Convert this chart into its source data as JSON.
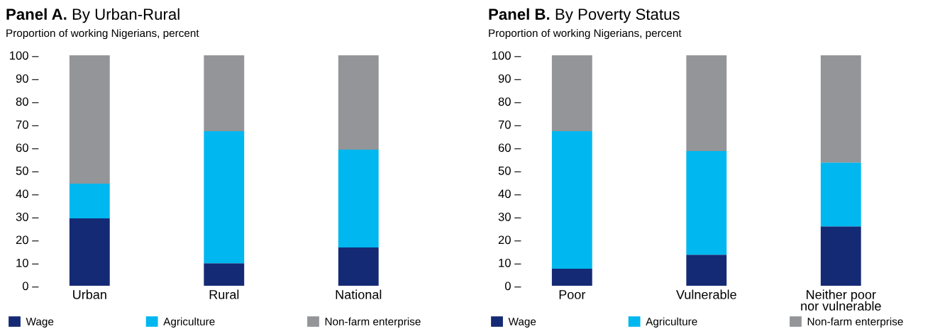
{
  "chart_data": [
    {
      "type": "bar",
      "stacked": true,
      "title": "Panel A. By Urban-Rural",
      "subtitle": "Proportion of working Nigerians, percent",
      "categories": [
        "Urban",
        "Rural",
        "National"
      ],
      "series": [
        {
          "name": "Wage",
          "color": "#152a74",
          "values": [
            29.2,
            9.8,
            16.6
          ]
        },
        {
          "name": "Agriculture",
          "color": "#00b7ef",
          "values": [
            15.1,
            57.3,
            42.5
          ]
        },
        {
          "name": "Non-farm enterprise",
          "color": "#939598",
          "values": [
            55.7,
            32.9,
            40.9
          ]
        }
      ],
      "ylim": [
        0,
        100
      ],
      "yticks": [
        {
          "value": 0,
          "label": "0 –"
        },
        {
          "value": 10,
          "label": "10 –"
        },
        {
          "value": 20,
          "label": "20 –"
        },
        {
          "value": 30,
          "label": "30 –"
        },
        {
          "value": 40,
          "label": "40 –"
        },
        {
          "value": 50,
          "label": "50 –"
        },
        {
          "value": 60,
          "label": "60 –"
        },
        {
          "value": 70,
          "label": "70 –"
        },
        {
          "value": 80,
          "label": "80 –"
        },
        {
          "value": 90,
          "label": "90 –"
        },
        {
          "value": 100,
          "label": "100 –"
        }
      ],
      "legend": "bottom",
      "grid": false
    },
    {
      "type": "bar",
      "stacked": true,
      "title": "Panel B. By Poverty Status",
      "subtitle": "Proportion of working Nigerians, percent",
      "categories": [
        "Poor",
        "Vulnerable",
        "Neither poor\nnor vulnerable"
      ],
      "series": [
        {
          "name": "Wage",
          "color": "#152a74",
          "values": [
            7.4,
            13.5,
            25.8
          ]
        },
        {
          "name": "Agriculture",
          "color": "#00b7ef",
          "values": [
            59.7,
            45.0,
            27.7
          ]
        },
        {
          "name": "Non-farm enterprise",
          "color": "#939598",
          "values": [
            32.9,
            41.5,
            46.5
          ]
        }
      ],
      "ylim": [
        0,
        100
      ],
      "yticks": [
        {
          "value": 0,
          "label": "0 –"
        },
        {
          "value": 10,
          "label": "10 –"
        },
        {
          "value": 20,
          "label": "20 –"
        },
        {
          "value": 30,
          "label": "30 –"
        },
        {
          "value": 40,
          "label": "40 –"
        },
        {
          "value": 50,
          "label": "50 –"
        },
        {
          "value": 60,
          "label": "60 –"
        },
        {
          "value": 70,
          "label": "70 –"
        },
        {
          "value": 80,
          "label": "80 –"
        },
        {
          "value": 90,
          "label": "90 –"
        },
        {
          "value": 100,
          "label": "100 –"
        }
      ],
      "legend": "bottom",
      "grid": false
    }
  ]
}
